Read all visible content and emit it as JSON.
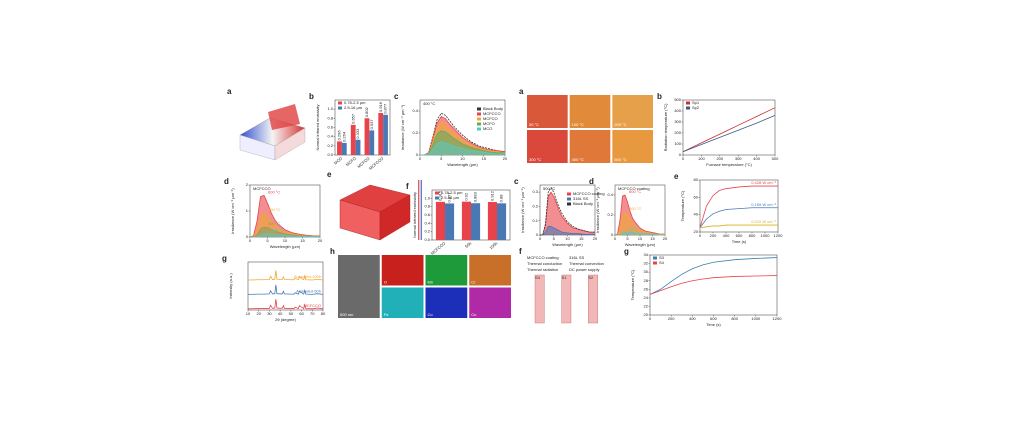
{
  "chart_data": [
    {
      "type": "surface",
      "label": "a"
    },
    {
      "type": "bar",
      "label": "b",
      "ylabel": "Normal infrared emissivity",
      "legend": "upper left",
      "categories": [
        "MCO",
        "MCFO",
        "MCFCO",
        "MCFCCO"
      ],
      "series": [
        {
          "name": "0.78-2.5 μm",
          "color": "#e8434a",
          "values": [
            0.296,
            0.657,
            0.802,
            0.916
          ]
        },
        {
          "name": "2.5-16 μm",
          "color": "#4a78b5",
          "values": [
            0.264,
            0.333,
            0.537,
            0.877
          ]
        }
      ],
      "ylim": [
        0,
        1.2
      ],
      "yticks": [
        {
          "value": 0,
          "label": "0.0"
        },
        0.2,
        0.4,
        0.6,
        0.8,
        {
          "value": 1,
          "label": "1.0"
        }
      ]
    },
    {
      "type": "line",
      "label": "c",
      "title": "400 °C",
      "xlabel": "Wavelength (μm)",
      "ylabel": "Irradiance (W cm⁻² μm⁻¹)",
      "legend": "upper right",
      "x": [
        0,
        1,
        2,
        3,
        4,
        5,
        6,
        7,
        8,
        10,
        12,
        14,
        16,
        18,
        20
      ],
      "series": [
        {
          "name": "Black Body",
          "color": "#333333",
          "dash": true,
          "values": [
            0,
            0,
            0.02,
            0.16,
            0.32,
            0.38,
            0.36,
            0.31,
            0.26,
            0.18,
            0.12,
            0.08,
            0.06,
            0.04,
            0.03
          ]
        },
        {
          "name": "MCFCCO",
          "color": "#e8434a",
          "fill": true,
          "values": [
            0,
            0,
            0.02,
            0.14,
            0.29,
            0.35,
            0.33,
            0.28,
            0.24,
            0.16,
            0.11,
            0.07,
            0.05,
            0.04,
            0.03
          ]
        },
        {
          "name": "MCFCO",
          "color": "#f0a830",
          "fill": true,
          "values": [
            0,
            0,
            0.01,
            0.12,
            0.25,
            0.3,
            0.28,
            0.24,
            0.2,
            0.14,
            0.09,
            0.06,
            0.04,
            0.03,
            0.02
          ]
        },
        {
          "name": "MCFO",
          "color": "#5fae5f",
          "fill": true,
          "values": [
            0,
            0,
            0.01,
            0.09,
            0.19,
            0.22,
            0.21,
            0.18,
            0.15,
            0.1,
            0.07,
            0.05,
            0.03,
            0.02,
            0.02
          ]
        },
        {
          "name": "MCO",
          "color": "#5ac8c0",
          "fill": true,
          "values": [
            0,
            0,
            0.01,
            0.05,
            0.1,
            0.12,
            0.11,
            0.1,
            0.08,
            0.06,
            0.04,
            0.03,
            0.02,
            0.01,
            0.01
          ]
        }
      ],
      "xlim": [
        0,
        20
      ],
      "xticks": [
        0,
        5,
        10,
        15,
        20
      ],
      "ylim": [
        0,
        0.5
      ],
      "yticks": [
        0,
        0.2,
        0.4
      ]
    },
    {
      "type": "line",
      "label": "d",
      "title": "MCFCCO",
      "xlabel": "Wavelength (μm)",
      "ylabel": "Irradiance (W cm⁻² μm⁻¹)",
      "legend": "inline",
      "x": [
        0,
        1,
        2,
        3,
        4,
        5,
        6,
        7,
        8,
        10,
        12,
        14,
        16,
        18,
        20
      ],
      "series": [
        {
          "name": "600 °C",
          "color": "#e8434a",
          "fill": true,
          "values": [
            0,
            0.05,
            0.6,
            1.55,
            1.6,
            1.3,
            0.95,
            0.68,
            0.5,
            0.28,
            0.17,
            0.11,
            0.07,
            0.05,
            0.04
          ]
        },
        {
          "name": "500 °C",
          "color": "#f0a830",
          "fill": true,
          "values": [
            0,
            0.01,
            0.25,
            0.8,
            0.92,
            0.8,
            0.62,
            0.46,
            0.34,
            0.2,
            0.12,
            0.08,
            0.05,
            0.04,
            0.03
          ]
        },
        {
          "name": "400 °C",
          "color": "#8aa060",
          "fill": true,
          "values": [
            0,
            0,
            0.07,
            0.3,
            0.38,
            0.36,
            0.3,
            0.24,
            0.19,
            0.12,
            0.08,
            0.05,
            0.04,
            0.03,
            0.02
          ]
        },
        {
          "name": "300 °C",
          "color": "#5ac8c0",
          "fill": true,
          "values": [
            0,
            0,
            0.01,
            0.07,
            0.12,
            0.13,
            0.12,
            0.1,
            0.08,
            0.06,
            0.04,
            0.03,
            0.02,
            0.02,
            0.01
          ]
        }
      ],
      "xlim": [
        0,
        20
      ],
      "xticks": [
        0,
        5,
        10,
        15,
        20
      ],
      "ylim": [
        0,
        2
      ],
      "yticks": [
        0,
        1,
        2
      ]
    },
    {
      "type": "surface",
      "label": "e"
    },
    {
      "type": "bar",
      "label": "f",
      "ylabel": "Normal infrared emissivity",
      "legend": "upper left",
      "categories": [
        "MCFCCO",
        "50h",
        "100h"
      ],
      "series": [
        {
          "name": "0.78-2.5 μm",
          "color": "#e8434a",
          "values": [
            0.915,
            0.92,
            0.912
          ]
        },
        {
          "name": "2.5-16 μm",
          "color": "#4a78b5",
          "values": [
            0.877,
            0.883,
            0.88
          ]
        }
      ],
      "ylim": [
        0,
        1.2
      ],
      "yticks": [
        {
          "value": 0,
          "label": "0.0"
        },
        0.2,
        0.4,
        0.6,
        0.8,
        {
          "value": 1,
          "label": "1.0"
        }
      ]
    },
    {
      "type": "line",
      "label": "g",
      "xlabel": "2θ (degree)",
      "ylabel": "Intensity (a.u.)",
      "legend": "end",
      "x": [
        10,
        20,
        25,
        30,
        31,
        33,
        35,
        36,
        37,
        42,
        43,
        44,
        50,
        53,
        54,
        57,
        58,
        62,
        63,
        64,
        70,
        75,
        80
      ],
      "series": [
        {
          "name": "Annealed-100h",
          "color": "#f0a830",
          "values": [
            12.5,
            12.6,
            12.6,
            12.7,
            14,
            12.7,
            12.8,
            16.5,
            12.8,
            12.7,
            13.8,
            12.7,
            12.6,
            12.6,
            13.2,
            12.6,
            13.8,
            12.6,
            14.2,
            12.6,
            12.5,
            12.8,
            12.5
          ]
        },
        {
          "name": "Annealed-50h",
          "color": "#4a78b5",
          "values": [
            6.5,
            6.6,
            6.6,
            6.7,
            8,
            6.7,
            6.8,
            10.5,
            6.8,
            6.7,
            7.8,
            6.7,
            6.6,
            6.6,
            7.2,
            6.6,
            7.8,
            6.6,
            8.2,
            6.6,
            6.5,
            6.8,
            6.5
          ]
        },
        {
          "name": "MCFCCO",
          "color": "#e8434a",
          "values": [
            0.5,
            0.6,
            0.6,
            0.7,
            2,
            0.7,
            0.8,
            4.5,
            0.8,
            0.7,
            1.8,
            0.7,
            0.6,
            0.6,
            1.2,
            0.6,
            1.8,
            0.6,
            2.2,
            0.6,
            0.5,
            0.8,
            0.5
          ]
        }
      ],
      "xlim": [
        10,
        80
      ],
      "xticks": [
        10,
        20,
        30,
        40,
        50,
        60,
        70,
        80
      ],
      "ylim": [
        0,
        20
      ]
    },
    {
      "type": "image",
      "label": "h",
      "tiles": [
        {
          "text": "500 nm",
          "color": "#6a6a6a"
        },
        {
          "text": "O",
          "color": "#c8201c"
        },
        {
          "text": "Mn",
          "color": "#1f9a3a"
        },
        {
          "text": "Cr",
          "color": "#c8702a"
        },
        {
          "text": "Fe",
          "color": "#21b0b8"
        },
        {
          "text": "Co",
          "color": "#1c2fb8"
        },
        {
          "text": "Cu",
          "color": "#b02aa8"
        }
      ]
    },
    {
      "type": "image",
      "label": "a",
      "tiles": [
        {
          "text": "30 °C",
          "color": "#d9583a"
        },
        {
          "text": "100 °C",
          "color": "#e08a3a"
        },
        {
          "text": "200 °C",
          "color": "#e6a04a"
        },
        {
          "text": "300 °C",
          "color": "#d9483a"
        },
        {
          "text": "400 °C",
          "color": "#e0783a"
        },
        {
          "text": "500 °C",
          "color": "#e8983f"
        }
      ]
    },
    {
      "type": "line",
      "label": "b",
      "xlabel": "Furnace temperature (°C)",
      "ylabel": "Radiation temperature (°C)",
      "legend": "upper left",
      "x": [
        0,
        100,
        200,
        300,
        400,
        500
      ],
      "series": [
        {
          "name": "Sp1",
          "color": "#c8302c",
          "values": [
            30,
            110,
            190,
            270,
            350,
            430
          ]
        },
        {
          "name": "Sp2",
          "color": "#3a5a8a",
          "values": [
            30,
            95,
            160,
            225,
            290,
            360
          ]
        }
      ],
      "xlim": [
        0,
        500
      ],
      "xticks": [
        0,
        100,
        200,
        300,
        400,
        500
      ],
      "ylim": [
        0,
        500
      ],
      "yticks": [
        0,
        100,
        200,
        300,
        400,
        500
      ]
    },
    {
      "type": "line",
      "label": "c",
      "title": "500 °C",
      "xlabel": "Wavelength (μm)",
      "ylabel": "Irradiance (W cm⁻² μm⁻¹)",
      "legend": "upper right",
      "x": [
        0,
        1,
        2,
        3,
        4,
        5,
        6,
        7,
        8,
        10,
        12,
        14,
        16,
        18,
        20
      ],
      "series": [
        {
          "name": "MCFCCO coating",
          "color": "#e8434a",
          "fill": true,
          "values": [
            0,
            0,
            0.07,
            0.27,
            0.3,
            0.27,
            0.22,
            0.17,
            0.13,
            0.08,
            0.05,
            0.04,
            0.03,
            0.02,
            0.02
          ]
        },
        {
          "name": "316L SS",
          "color": "#4a78b5",
          "fill": true,
          "values": [
            0,
            0,
            0.02,
            0.06,
            0.06,
            0.05,
            0.04,
            0.03,
            0.02,
            0.015,
            0.01,
            0.01,
            0.005,
            0.005,
            0.005
          ]
        },
        {
          "name": "Black Body",
          "color": "#333333",
          "dash": true,
          "values": [
            0,
            0,
            0.08,
            0.3,
            0.33,
            0.3,
            0.24,
            0.19,
            0.15,
            0.09,
            0.06,
            0.04,
            0.03,
            0.02,
            0.02
          ]
        }
      ],
      "xlim": [
        0,
        20
      ],
      "xticks": [
        0,
        5,
        10,
        15,
        20
      ],
      "ylim": [
        0,
        0.35
      ],
      "yticks": [
        0,
        0.1,
        0.2,
        0.3
      ]
    },
    {
      "type": "line",
      "label": "d",
      "title": "MCFCCO coating",
      "xlabel": "Wavelength (μm)",
      "ylabel": "Irradiance (W cm⁻² μm⁻¹)",
      "legend": "inline",
      "x": [
        0,
        1,
        2,
        3,
        4,
        5,
        6,
        7,
        8,
        10,
        12,
        14,
        16,
        18,
        20
      ],
      "series": [
        {
          "name": "600 °C",
          "color": "#e8434a",
          "fill": true,
          "values": [
            0,
            0.01,
            0.15,
            0.39,
            0.4,
            0.33,
            0.24,
            0.17,
            0.13,
            0.07,
            0.04,
            0.03,
            0.02,
            0.01,
            0.01
          ]
        },
        {
          "name": "500 °C",
          "color": "#f0a830",
          "fill": true,
          "values": [
            0,
            0,
            0.06,
            0.2,
            0.23,
            0.2,
            0.16,
            0.12,
            0.09,
            0.05,
            0.03,
            0.02,
            0.01,
            0.01,
            0.01
          ]
        },
        {
          "name": "300 °C",
          "color": "#5ac8c0",
          "fill": true,
          "values": [
            0,
            0,
            0,
            0.02,
            0.03,
            0.03,
            0.03,
            0.03,
            0.02,
            0.02,
            0.01,
            0.01,
            0.01,
            0,
            0
          ]
        }
      ],
      "xlim": [
        0,
        20
      ],
      "xticks": [
        0,
        5,
        10,
        15,
        20
      ],
      "ylim": [
        0,
        0.5
      ],
      "yticks": [
        0,
        0.2,
        0.4
      ]
    },
    {
      "type": "line",
      "label": "e",
      "xlabel": "Time (s)",
      "ylabel": "Temperature (°C)",
      "legend": "end",
      "x": [
        0,
        100,
        200,
        300,
        400,
        600,
        800,
        1000,
        1200
      ],
      "series": [
        {
          "name": "0.428 W cm⁻²",
          "color": "#e8434a",
          "values": [
            25,
            50,
            62,
            68,
            70,
            72,
            73,
            73,
            73
          ]
        },
        {
          "name": "0.159 W cm⁻²",
          "color": "#4a78b5",
          "values": [
            25,
            35,
            41,
            44,
            46,
            47,
            48,
            48,
            48
          ]
        },
        {
          "name": "0.010 W cm⁻²",
          "color": "#d8b020",
          "values": [
            25,
            26,
            27,
            27,
            28,
            28,
            28,
            28,
            28
          ]
        }
      ],
      "xlim": [
        0,
        1200
      ],
      "xticks": [
        0,
        200,
        400,
        600,
        800,
        1000,
        1200
      ],
      "ylim": [
        20,
        80
      ],
      "yticks": [
        20,
        40,
        60,
        80
      ]
    },
    {
      "type": "image",
      "label": "f",
      "notes": [
        "MCFCCO coating",
        "316L SS",
        "Thermal conduction",
        "Thermal convection",
        "Thermal radiation",
        "DC power supply"
      ],
      "tiles": [
        {
          "text": "S4",
          "color": "#f2b8b8"
        },
        {
          "text": "S1",
          "color": "#f2b8b8"
        },
        {
          "text": "S2",
          "color": "#f2b8b8"
        }
      ]
    },
    {
      "type": "line",
      "label": "g",
      "xlabel": "Time (s)",
      "ylabel": "Temperature (°C)",
      "legend": "upper left",
      "x": [
        0,
        100,
        200,
        300,
        400,
        500,
        600,
        800,
        1000,
        1200
      ],
      "series": [
        {
          "name": "S3",
          "color": "#3a7fb0",
          "values": [
            24.8,
            26,
            27.8,
            29.5,
            30.8,
            31.7,
            32.3,
            32.9,
            33.2,
            33.4
          ]
        },
        {
          "name": "S4",
          "color": "#e8434a",
          "values": [
            24.8,
            25.7,
            26.6,
            27.4,
            28,
            28.4,
            28.7,
            29,
            29.1,
            29.2
          ]
        }
      ],
      "xlim": [
        0,
        1200
      ],
      "xticks": [
        0,
        200,
        400,
        600,
        800,
        1000,
        1200
      ],
      "ylim": [
        20,
        34
      ],
      "yticks": [
        20,
        22,
        24,
        26,
        28,
        30,
        32,
        34
      ]
    }
  ]
}
